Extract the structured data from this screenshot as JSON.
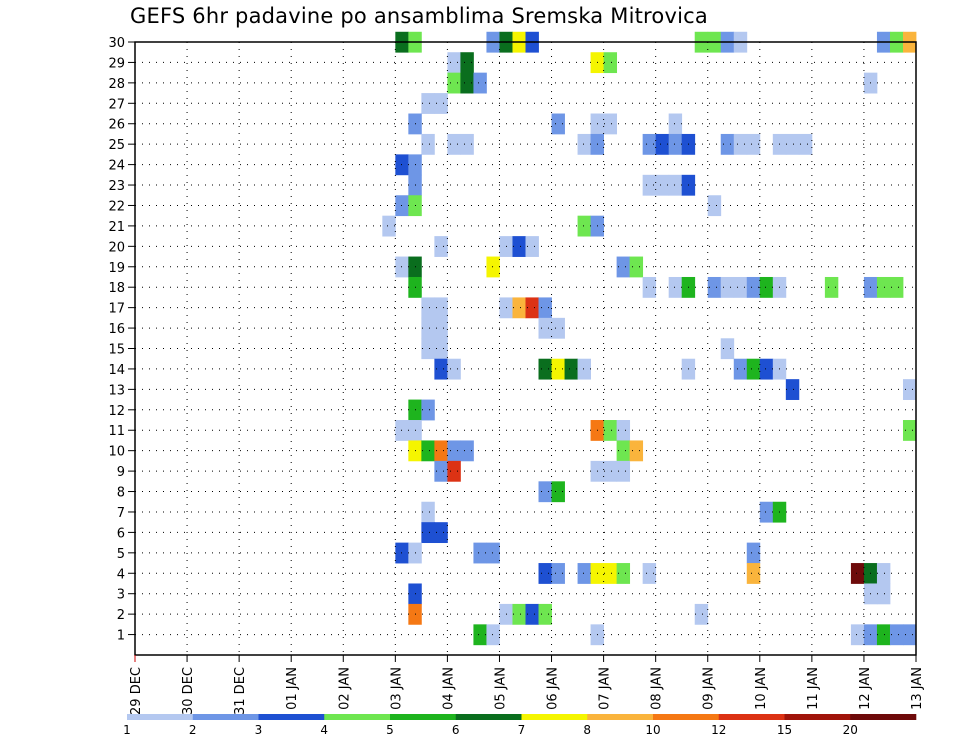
{
  "chart_data": {
    "type": "heatmap",
    "title": "GEFS 6hr padavine po ansamblima Sremska Mitrovica",
    "xlabel": "",
    "ylabel": "",
    "x_ticks": [
      "29 DEC",
      "30 DEC",
      "31 DEC",
      "01 JAN",
      "02 JAN",
      "03 JAN",
      "04 JAN",
      "05 JAN",
      "06 JAN",
      "07 JAN",
      "08 JAN",
      "09 JAN",
      "10 JAN",
      "11 JAN",
      "12 JAN",
      "13 JAN"
    ],
    "x_range_days": [
      0,
      15
    ],
    "y_ticks": [
      "1",
      "2",
      "3",
      "4",
      "5",
      "6",
      "7",
      "8",
      "9",
      "10",
      "11",
      "12",
      "13",
      "14",
      "15",
      "16",
      "17",
      "18",
      "19",
      "20",
      "21",
      "22",
      "23",
      "24",
      "25",
      "26",
      "27",
      "28",
      "29",
      "30"
    ],
    "y_range": [
      0,
      30
    ],
    "time_step_hours": 6,
    "grid": true,
    "colorbar": {
      "levels": [
        "1",
        "2",
        "3",
        "4",
        "5",
        "6",
        "7",
        "8",
        "10",
        "12",
        "15",
        "20"
      ],
      "colors": [
        "#b4c8f0",
        "#6e96e6",
        "#1e50d2",
        "#6ee650",
        "#1eb41e",
        "#0a6e1e",
        "#f5f500",
        "#fab43c",
        "#f57814",
        "#dc3214",
        "#a0140a",
        "#6e0a0a"
      ]
    },
    "cells": [
      {
        "m": 30,
        "s": [
          [
            20,
            6
          ],
          [
            21,
            4
          ],
          [
            27,
            2
          ],
          [
            28,
            6
          ],
          [
            29,
            7
          ],
          [
            30,
            3
          ],
          [
            43,
            4
          ],
          [
            44,
            4
          ],
          [
            45,
            2
          ],
          [
            46,
            1
          ],
          [
            57,
            2
          ],
          [
            58,
            4
          ],
          [
            59,
            8
          ]
        ]
      },
      {
        "m": 29,
        "s": [
          [
            24,
            1
          ],
          [
            25,
            6
          ],
          [
            35,
            7
          ],
          [
            36,
            4
          ]
        ]
      },
      {
        "m": 28,
        "s": [
          [
            24,
            4
          ],
          [
            25,
            6
          ],
          [
            26,
            2
          ],
          [
            56,
            1
          ]
        ]
      },
      {
        "m": 27,
        "s": [
          [
            22,
            1
          ],
          [
            23,
            1
          ]
        ]
      },
      {
        "m": 26,
        "s": [
          [
            21,
            2
          ],
          [
            32,
            2
          ],
          [
            35,
            1
          ],
          [
            36,
            1
          ],
          [
            41,
            1
          ]
        ]
      },
      {
        "m": 25,
        "s": [
          [
            22,
            1
          ],
          [
            24,
            1
          ],
          [
            25,
            1
          ],
          [
            34,
            1
          ],
          [
            35,
            2
          ],
          [
            39,
            2
          ],
          [
            40,
            3
          ],
          [
            41,
            2
          ],
          [
            42,
            3
          ],
          [
            45,
            2
          ],
          [
            46,
            1
          ],
          [
            47,
            1
          ],
          [
            49,
            1
          ],
          [
            50,
            1
          ],
          [
            51,
            1
          ]
        ]
      },
      {
        "m": 24,
        "s": [
          [
            20,
            3
          ],
          [
            21,
            2
          ]
        ]
      },
      {
        "m": 23,
        "s": [
          [
            21,
            2
          ],
          [
            39,
            1
          ],
          [
            40,
            1
          ],
          [
            41,
            1
          ],
          [
            42,
            3
          ]
        ]
      },
      {
        "m": 22,
        "s": [
          [
            20,
            2
          ],
          [
            21,
            4
          ],
          [
            44,
            1
          ]
        ]
      },
      {
        "m": 21,
        "s": [
          [
            19,
            1
          ],
          [
            34,
            4
          ],
          [
            35,
            2
          ]
        ]
      },
      {
        "m": 20,
        "s": [
          [
            23,
            1
          ],
          [
            28,
            1
          ],
          [
            29,
            3
          ],
          [
            30,
            1
          ]
        ]
      },
      {
        "m": 19,
        "s": [
          [
            20,
            1
          ],
          [
            21,
            6
          ],
          [
            27,
            7
          ],
          [
            37,
            2
          ],
          [
            38,
            4
          ]
        ]
      },
      {
        "m": 18,
        "s": [
          [
            21,
            5
          ],
          [
            39,
            1
          ],
          [
            41,
            1
          ],
          [
            42,
            5
          ],
          [
            44,
            2
          ],
          [
            45,
            1
          ],
          [
            46,
            1
          ],
          [
            47,
            2
          ],
          [
            48,
            5
          ],
          [
            49,
            1
          ],
          [
            53,
            4
          ],
          [
            56,
            2
          ],
          [
            57,
            4
          ],
          [
            58,
            4
          ]
        ]
      },
      {
        "m": 17,
        "s": [
          [
            22,
            1
          ],
          [
            23,
            1
          ],
          [
            28,
            1
          ],
          [
            29,
            8
          ],
          [
            30,
            10
          ],
          [
            31,
            2
          ]
        ]
      },
      {
        "m": 16,
        "s": [
          [
            22,
            1
          ],
          [
            23,
            1
          ],
          [
            31,
            1
          ],
          [
            32,
            1
          ]
        ]
      },
      {
        "m": 15,
        "s": [
          [
            22,
            1
          ],
          [
            23,
            1
          ],
          [
            45,
            1
          ]
        ]
      },
      {
        "m": 14,
        "s": [
          [
            23,
            3
          ],
          [
            24,
            1
          ],
          [
            31,
            6
          ],
          [
            32,
            7
          ],
          [
            33,
            6
          ],
          [
            34,
            1
          ],
          [
            42,
            1
          ],
          [
            46,
            2
          ],
          [
            47,
            5
          ],
          [
            48,
            3
          ],
          [
            49,
            1
          ]
        ]
      },
      {
        "m": 13,
        "s": [
          [
            50,
            3
          ],
          [
            59,
            1
          ]
        ]
      },
      {
        "m": 12,
        "s": [
          [
            21,
            5
          ],
          [
            22,
            2
          ]
        ]
      },
      {
        "m": 11,
        "s": [
          [
            20,
            1
          ],
          [
            21,
            1
          ],
          [
            35,
            9
          ],
          [
            36,
            4
          ],
          [
            37,
            1
          ],
          [
            59,
            4
          ]
        ]
      },
      {
        "m": 10,
        "s": [
          [
            21,
            7
          ],
          [
            22,
            5
          ],
          [
            23,
            9
          ],
          [
            24,
            2
          ],
          [
            25,
            2
          ],
          [
            37,
            4
          ],
          [
            38,
            8
          ]
        ]
      },
      {
        "m": 9,
        "s": [
          [
            23,
            2
          ],
          [
            24,
            10
          ],
          [
            35,
            1
          ],
          [
            36,
            1
          ],
          [
            37,
            1
          ]
        ]
      },
      {
        "m": 8,
        "s": [
          [
            31,
            2
          ],
          [
            32,
            5
          ]
        ]
      },
      {
        "m": 7,
        "s": [
          [
            22,
            1
          ],
          [
            48,
            2
          ],
          [
            49,
            5
          ]
        ]
      },
      {
        "m": 6,
        "s": [
          [
            22,
            3
          ],
          [
            23,
            3
          ]
        ]
      },
      {
        "m": 5,
        "s": [
          [
            20,
            3
          ],
          [
            21,
            1
          ],
          [
            26,
            2
          ],
          [
            27,
            2
          ],
          [
            47,
            2
          ]
        ]
      },
      {
        "m": 4,
        "s": [
          [
            31,
            3
          ],
          [
            32,
            2
          ],
          [
            34,
            2
          ],
          [
            35,
            7
          ],
          [
            36,
            7
          ],
          [
            37,
            4
          ],
          [
            39,
            1
          ],
          [
            47,
            8
          ],
          [
            55,
            12
          ],
          [
            56,
            6
          ],
          [
            57,
            1
          ]
        ]
      },
      {
        "m": 3,
        "s": [
          [
            21,
            3
          ],
          [
            56,
            1
          ],
          [
            57,
            1
          ]
        ]
      },
      {
        "m": 2,
        "s": [
          [
            21,
            9
          ],
          [
            28,
            1
          ],
          [
            29,
            4
          ],
          [
            30,
            3
          ],
          [
            31,
            4
          ],
          [
            43,
            1
          ]
        ]
      },
      {
        "m": 1,
        "s": [
          [
            26,
            5
          ],
          [
            27,
            1
          ],
          [
            35,
            1
          ],
          [
            55,
            1
          ],
          [
            56,
            2
          ],
          [
            57,
            5
          ],
          [
            58,
            2
          ],
          [
            59,
            2
          ]
        ]
      }
    ]
  }
}
